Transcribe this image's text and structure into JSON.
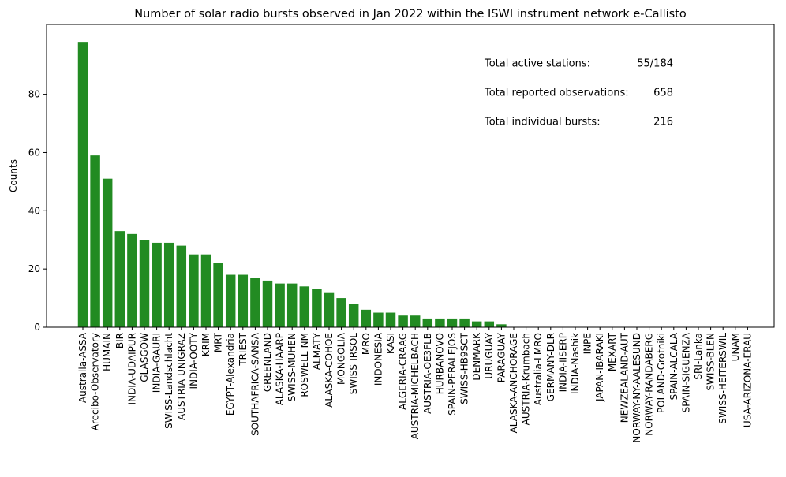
{
  "chart_data": {
    "type": "bar",
    "title": "Number of solar radio bursts observed in Jan 2022 within the ISWI instrument network e-Callisto",
    "xlabel": "",
    "ylabel": "Counts",
    "ylim": [
      0,
      104
    ],
    "yticks": [
      0,
      20,
      40,
      60,
      80
    ],
    "bar_color": "#228b22",
    "grid": false,
    "categories": [
      "Australia-ASSA",
      "Arecibo-Observatory",
      "HUMAIN",
      "BIR",
      "INDIA-UDAIPUR",
      "GLASGOW",
      "INDIA-GAURI",
      "SWISS-Landschlacht",
      "AUSTRIA-UNIGRAZ",
      "INDIA-OOTY",
      "KRIM",
      "MRT",
      "EGYPT-Alexandria",
      "TRIEST",
      "SOUTHAFRICA-SANSA",
      "GREENLAND",
      "ALASKA-HAARP",
      "SWISS-MUHEN",
      "ROSWELL-NM",
      "ALMATY",
      "ALASKA-COHOE",
      "MONGOLIA",
      "SWISS-IRSOL",
      "MRO",
      "INDONESIA",
      "KASI",
      "ALGERIA-CRAAG",
      "AUSTRIA-MICHELBACH",
      "AUSTRIA-OE3FLB",
      "HURBANOVO",
      "SPAIN-PERALEJOS",
      "SWISS-HB9SCT",
      "DENMARK",
      "URUGUAY",
      "PARAGUAY",
      "ALASKA-ANCHORAGE",
      "AUSTRIA-Krumbach",
      "Australia-LMRO",
      "GERMANY-DLR",
      "INDIA-IISERP",
      "INDIA-Nashik",
      "INPE",
      "JAPAN-IBARAKI",
      "MEXART",
      "NEWZEALAND-AUT",
      "NORWAY-NY-AALESUND",
      "NORWAY-RANDABERG",
      "POLAND-Grotniki",
      "SPAIN-ALCALA",
      "SPAIN-SIGUENZA",
      "SRI-Lanka",
      "SWISS-BLEN",
      "SWISS-HEITERSWIL",
      "UNAM",
      "USA-ARIZONA-ERAU"
    ],
    "values": [
      98,
      59,
      51,
      33,
      32,
      30,
      29,
      29,
      28,
      25,
      25,
      22,
      18,
      18,
      17,
      16,
      15,
      15,
      14,
      13,
      12,
      10,
      8,
      6,
      5,
      5,
      4,
      4,
      3,
      3,
      3,
      3,
      2,
      2,
      1,
      0,
      0,
      0,
      0,
      0,
      0,
      0,
      0,
      0,
      0,
      0,
      0,
      0,
      0,
      0,
      0,
      0,
      0,
      0,
      0
    ],
    "annotations": [
      {
        "label": "Total active stations:",
        "value": "55/184"
      },
      {
        "label": "Total reported observations:",
        "value": "658"
      },
      {
        "label": "Total individual bursts:",
        "value": "216"
      }
    ]
  }
}
